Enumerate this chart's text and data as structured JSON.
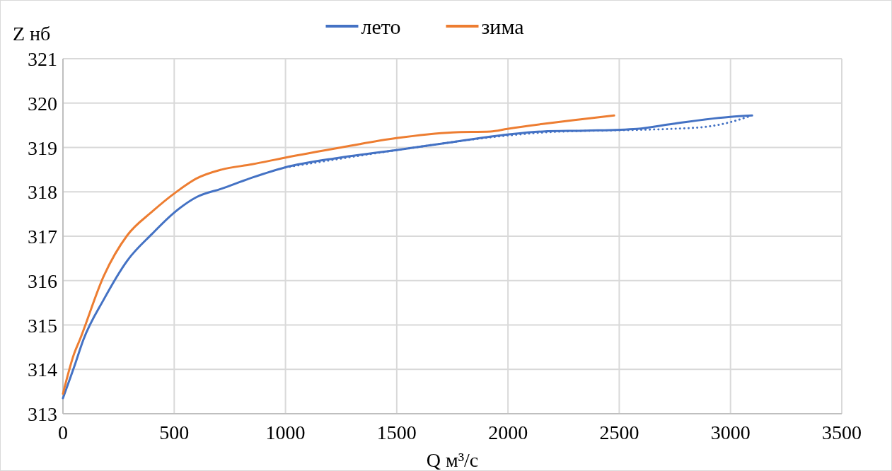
{
  "chart_data": {
    "type": "line",
    "xlabel": "Q м³/с",
    "ylabel": "Z нб",
    "xlim": [
      0,
      3500
    ],
    "xticks": [
      0,
      500,
      1000,
      1500,
      2000,
      2500,
      3000,
      3500
    ],
    "ylim": [
      313,
      321
    ],
    "yticks": [
      313,
      314,
      315,
      316,
      317,
      318,
      319,
      320,
      321
    ],
    "grid": true,
    "legend": "top",
    "line_style": "solid",
    "series": [
      {
        "name": "лето",
        "color": "#4472c4",
        "x": [
          0,
          50,
          92,
          184,
          289,
          400,
          502,
          600,
          712,
          850,
          998,
          1243,
          1498,
          1750,
          1997,
          2156,
          2350,
          2579,
          2738,
          2999,
          3097
        ],
        "values": [
          313.35,
          314.05,
          314.67,
          315.58,
          316.45,
          317.05,
          317.54,
          317.88,
          318.07,
          318.32,
          318.55,
          318.77,
          318.94,
          319.12,
          319.29,
          319.36,
          319.38,
          319.42,
          319.53,
          319.69,
          319.72
        ]
      },
      {
        "name": "зима",
        "color": "#ed7d31",
        "x": [
          0,
          50,
          76,
          184,
          289,
          400,
          502,
          600,
          712,
          850,
          998,
          1250,
          1498,
          1752,
          1921,
          1997,
          2156,
          2320,
          2477
        ],
        "values": [
          313.45,
          314.35,
          314.67,
          316.11,
          317.02,
          317.55,
          317.97,
          318.3,
          318.5,
          318.62,
          318.77,
          319.0,
          319.21,
          319.34,
          319.36,
          319.42,
          319.53,
          319.63,
          319.72
        ]
      },
      {
        "color": "#4472c4",
        "line_style": "dotted",
        "x": [
          1000,
          1500,
          2000,
          2200,
          2525,
          2738,
          2897,
          2999,
          3078
        ],
        "values": [
          318.55,
          318.94,
          319.27,
          319.35,
          319.39,
          319.42,
          319.47,
          319.57,
          319.69
        ]
      }
    ]
  }
}
